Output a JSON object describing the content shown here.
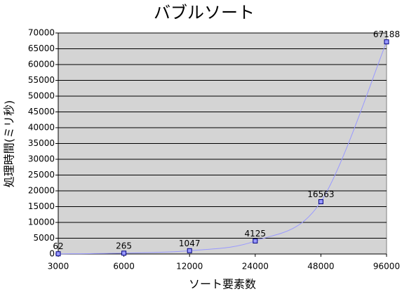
{
  "chart_data": {
    "type": "line",
    "title": "バブルソート",
    "x_label": "ソート要素数",
    "y_label": "処理時間(ミリ秒)",
    "categories": [
      "3000",
      "6000",
      "12000",
      "24000",
      "48000",
      "96000"
    ],
    "series": [
      {
        "name": "バブルソート",
        "color": "#9999ff",
        "values": [
          62,
          265,
          1047,
          4125,
          16563,
          67188
        ]
      }
    ],
    "ylim": [
      0,
      70000
    ],
    "yticks": [
      0,
      5000,
      10000,
      15000,
      20000,
      25000,
      30000,
      35000,
      40000,
      45000,
      50000,
      55000,
      60000,
      65000,
      70000
    ],
    "grid": true,
    "smooth": true
  }
}
